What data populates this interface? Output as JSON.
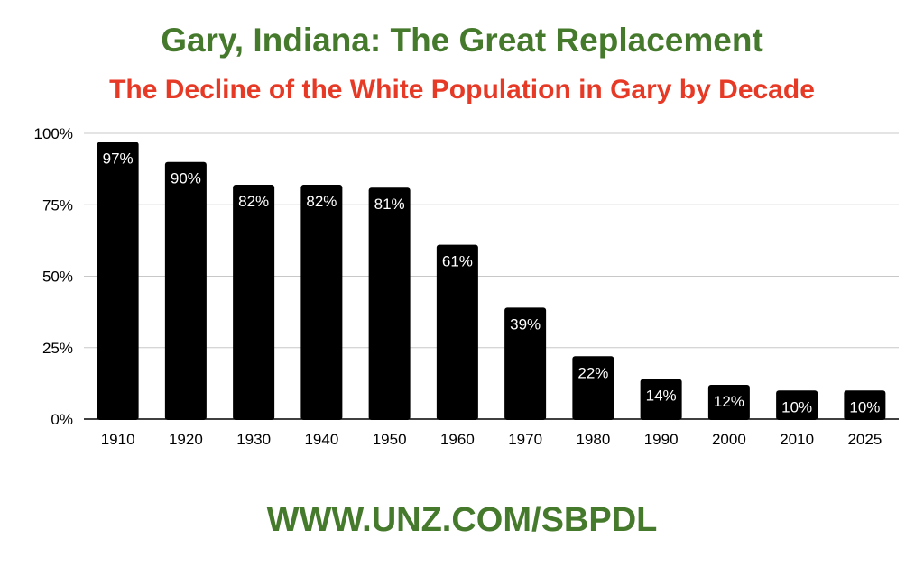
{
  "title": "Gary, Indiana: The Great Replacement",
  "subtitle": "The Decline of the White Population in Gary by Decade",
  "footer": "WWW.UNZ.COM/SBPDL",
  "colors": {
    "title": "#45792b",
    "subtitle": "#e63a27",
    "footer": "#45792b",
    "bar": "#000000",
    "bar_label": "#ffffff",
    "grid": "#c8c8c8",
    "axis": "#000000"
  },
  "chart_data": {
    "type": "bar",
    "categories": [
      "1910",
      "1920",
      "1930",
      "1940",
      "1950",
      "1960",
      "1970",
      "1980",
      "1990",
      "2000",
      "2010",
      "2025"
    ],
    "values": [
      97,
      90,
      82,
      82,
      81,
      61,
      39,
      22,
      14,
      12,
      10,
      10
    ],
    "data_labels": [
      "97%",
      "90%",
      "82%",
      "82%",
      "81%",
      "61%",
      "39%",
      "22%",
      "14%",
      "12%",
      "10%",
      "10%"
    ],
    "ylim": [
      0,
      100
    ],
    "yticks": [
      0,
      25,
      50,
      75,
      100
    ],
    "ytick_labels": [
      "0%",
      "25%",
      "50%",
      "75%",
      "100%"
    ],
    "grid": true,
    "legend": "none"
  }
}
